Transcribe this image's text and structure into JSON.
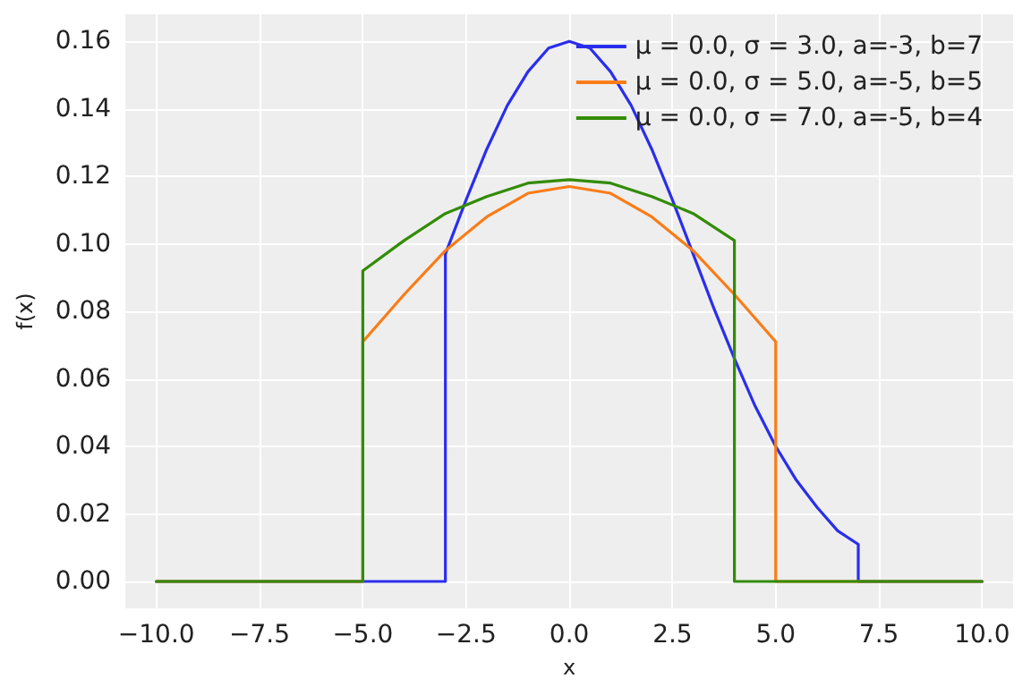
{
  "chart_data": {
    "type": "line",
    "xlabel": "x",
    "ylabel": "f(x)",
    "grid": true,
    "legend": "top right",
    "marker": "none",
    "line_style": "solid",
    "xlim": [
      -10.75,
      10.75
    ],
    "xticks": [
      {
        "value": -10,
        "label": "−10.0"
      },
      {
        "value": -7.5,
        "label": "−7.5"
      },
      {
        "value": -5,
        "label": "−5.0"
      },
      {
        "value": -2.5,
        "label": "−2.5"
      },
      {
        "value": 0,
        "label": "0.0"
      },
      {
        "value": 2.5,
        "label": "2.5"
      },
      {
        "value": 5,
        "label": "5.0"
      },
      {
        "value": 7.5,
        "label": "7.5"
      },
      {
        "value": 10,
        "label": "10.0"
      }
    ],
    "ylim": [
      -0.008,
      0.168
    ],
    "yticks": [
      {
        "value": 0,
        "label": "0.00"
      },
      {
        "value": 0.02,
        "label": "0.02"
      },
      {
        "value": 0.04,
        "label": "0.04"
      },
      {
        "value": 0.06,
        "label": "0.06"
      },
      {
        "value": 0.08,
        "label": "0.08"
      },
      {
        "value": 0.1,
        "label": "0.10"
      },
      {
        "value": 0.12,
        "label": "0.12"
      },
      {
        "value": 0.14,
        "label": "0.14"
      },
      {
        "value": 0.16,
        "label": "0.16"
      }
    ],
    "series": [
      {
        "name": "μ = 0.0, σ = 3.0, a=-3, b=7",
        "color": "#2a2eec",
        "x": [
          -10,
          -3,
          -3,
          -2.5,
          -2,
          -1.5,
          -1,
          -0.5,
          0,
          0.5,
          1,
          1.5,
          2,
          2.5,
          3,
          3.5,
          4,
          4.5,
          5,
          5.5,
          6,
          6.5,
          7,
          7,
          10
        ],
        "values": [
          0,
          0,
          0.097,
          0.113,
          0.128,
          0.141,
          0.151,
          0.158,
          0.16,
          0.158,
          0.151,
          0.141,
          0.128,
          0.113,
          0.097,
          0.081,
          0.066,
          0.052,
          0.04,
          0.03,
          0.022,
          0.015,
          0.011,
          0,
          0
        ]
      },
      {
        "name": "μ = 0.0, σ = 5.0, a=-5, b=5",
        "color": "#fa7c17",
        "x": [
          -10,
          -5,
          -5,
          -4,
          -3,
          -2,
          -1,
          0,
          1,
          2,
          3,
          4,
          5,
          5,
          10
        ],
        "values": [
          0,
          0,
          0.071,
          0.085,
          0.098,
          0.108,
          0.115,
          0.117,
          0.115,
          0.108,
          0.098,
          0.085,
          0.071,
          0,
          0
        ]
      },
      {
        "name": "μ = 0.0, σ = 7.0, a=-5, b=4",
        "color": "#328c06",
        "x": [
          -10,
          -5,
          -5,
          -4,
          -3,
          -2,
          -1,
          0,
          1,
          2,
          3,
          4,
          4,
          10
        ],
        "values": [
          0,
          0,
          0.092,
          0.101,
          0.109,
          0.114,
          0.118,
          0.119,
          0.118,
          0.114,
          0.109,
          0.101,
          0,
          0
        ]
      }
    ]
  }
}
